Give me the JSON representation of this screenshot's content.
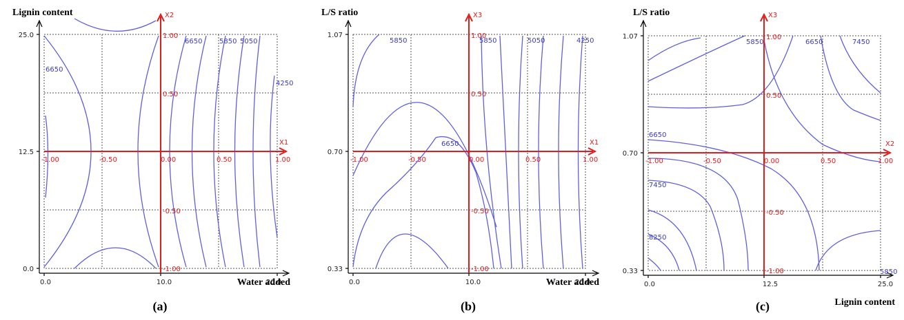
{
  "chart_data": [
    {
      "type": "contour",
      "panel_label": "(a)",
      "ylabel": "Lignin content",
      "xlabel": "Water added",
      "y_ticks": [
        "25.0",
        "12.5",
        "0.0"
      ],
      "x_ticks": [
        "0.0",
        "10.0",
        "20.0"
      ],
      "ylim": [
        0,
        25
      ],
      "xlim": [
        0,
        20
      ],
      "coded_axes": {
        "h": "X1",
        "v": "X2"
      },
      "coded_h_ticks": [
        "-1.00",
        "-0.50",
        "0.00",
        "0.50",
        "1.00"
      ],
      "coded_v_ticks": [
        "1.00",
        "0.50",
        "-0.50",
        "-1.00"
      ],
      "contour_labels": [
        "6650",
        "6650",
        "5850",
        "5050",
        "4250"
      ]
    },
    {
      "type": "contour",
      "panel_label": "(b)",
      "ylabel": "L/S ratio",
      "xlabel": "Water added",
      "y_ticks": [
        "1.07",
        "0.70",
        "0.33"
      ],
      "x_ticks": [
        "0.0",
        "10.0",
        "20.0"
      ],
      "ylim": [
        0.33,
        1.07
      ],
      "xlim": [
        0,
        20
      ],
      "coded_axes": {
        "h": "X1",
        "v": "X3"
      },
      "coded_h_ticks": [
        "-1.00",
        "-0.50",
        "0.00",
        "0.50",
        "1.00"
      ],
      "coded_v_ticks": [
        "1.00",
        "0.50",
        "-0.50",
        "-1.00"
      ],
      "contour_labels": [
        "5850",
        "5850",
        "5050",
        "4250",
        "6650"
      ]
    },
    {
      "type": "contour",
      "panel_label": "(c)",
      "ylabel": "L/S ratio",
      "xlabel": "Lignin content",
      "y_ticks": [
        "1.07",
        "0.70",
        "0.33"
      ],
      "x_ticks": [
        "0.0",
        "12.5",
        "25.0"
      ],
      "ylim": [
        0.33,
        1.07
      ],
      "xlim": [
        0,
        25
      ],
      "coded_axes": {
        "h": "X2",
        "v": "X3"
      },
      "coded_h_ticks": [
        "-1.00",
        "-0.50",
        "0.00",
        "0.50",
        "1.00"
      ],
      "coded_v_ticks": [
        "1.00",
        "0.50",
        "-0.50",
        "-1.00"
      ],
      "contour_labels": [
        "5850",
        "6650",
        "7450",
        "6650",
        "7450",
        "8250",
        "5850"
      ]
    }
  ]
}
